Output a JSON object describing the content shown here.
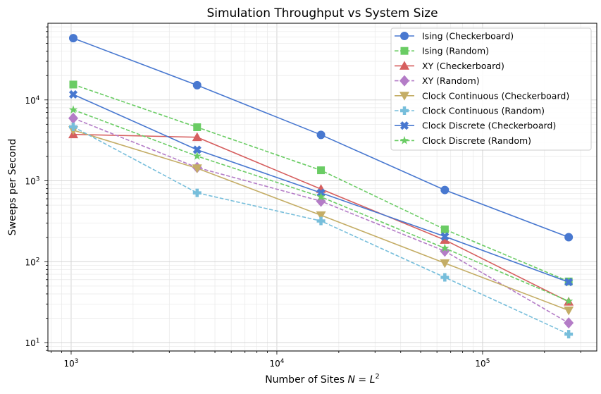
{
  "chart_data": {
    "type": "line",
    "title": "Simulation Throughput vs System Size",
    "xlabel": "Number of Sites N = L²",
    "ylabel": "Sweeps per Second",
    "xscale": "log",
    "yscale": "log",
    "xlim": [
      771,
      359000
    ],
    "ylim": [
      7.87,
      88700
    ],
    "grid": true,
    "legend_position": "top-right",
    "x": [
      1024,
      4096,
      16384,
      65536,
      262144
    ],
    "x_ticks": [
      {
        "value": 1000,
        "label": "10",
        "exp": "3"
      },
      {
        "value": 10000,
        "label": "10",
        "exp": "4"
      },
      {
        "value": 100000,
        "label": "10",
        "exp": "5"
      }
    ],
    "y_ticks": [
      {
        "value": 10,
        "label": "10",
        "exp": "1"
      },
      {
        "value": 100,
        "label": "10",
        "exp": "2"
      },
      {
        "value": 1000,
        "label": "10",
        "exp": "3"
      },
      {
        "value": 10000,
        "label": "10",
        "exp": "4"
      }
    ],
    "series": [
      {
        "name": "Ising (Checkerboard)",
        "color": "#4878d0",
        "dash": "solid",
        "marker": "circle",
        "values": [
          58000,
          15200,
          3700,
          770,
          201
        ]
      },
      {
        "name": "Ising (Random)",
        "color": "#6acc64",
        "dash": "dashed",
        "marker": "square",
        "values": [
          15500,
          4600,
          1350,
          251,
          57
        ]
      },
      {
        "name": "XY (Checkerboard)",
        "color": "#d65f5f",
        "dash": "solid",
        "marker": "triangle-up",
        "values": [
          3750,
          3460,
          790,
          186,
          32
        ]
      },
      {
        "name": "XY (Random)",
        "color": "#b47cc7",
        "dash": "dashed",
        "marker": "diamond",
        "values": [
          5940,
          1460,
          560,
          135,
          17.5
        ]
      },
      {
        "name": "Clock Continuous (Checkerboard)",
        "color": "#c4ad66",
        "dash": "solid",
        "marker": "triangle-down",
        "values": [
          4230,
          1430,
          375,
          96,
          25
        ]
      },
      {
        "name": "Clock Continuous (Random)",
        "color": "#77bedb",
        "dash": "dashed",
        "marker": "plus",
        "values": [
          4650,
          710,
          319,
          64,
          12.7
        ]
      },
      {
        "name": "Clock Discrete (Checkerboard)",
        "color": "#4878d0",
        "dash": "solid",
        "marker": "x",
        "values": [
          11700,
          2420,
          710,
          205,
          56
        ]
      },
      {
        "name": "Clock Discrete (Random)",
        "color": "#6acc64",
        "dash": "dashed",
        "marker": "star",
        "values": [
          7550,
          2020,
          632,
          147,
          32.6
        ]
      }
    ]
  }
}
